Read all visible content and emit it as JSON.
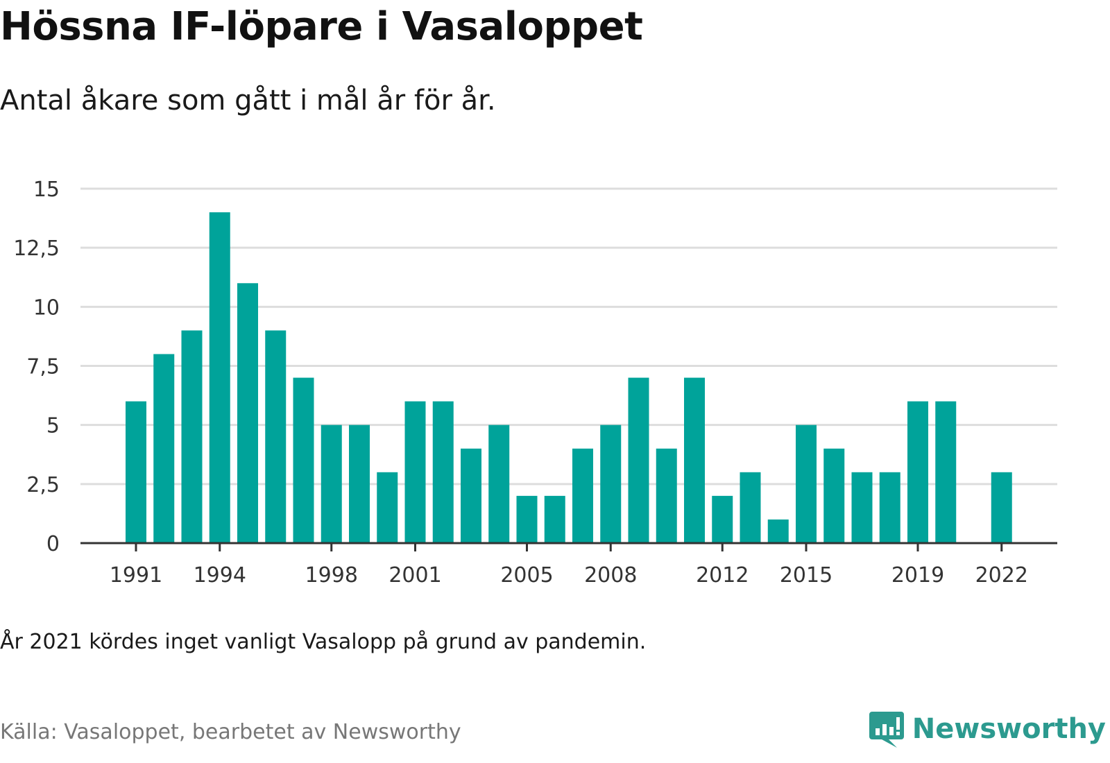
{
  "header": {
    "title": "Hössna IF-löpare i Vasaloppet",
    "subtitle": "Antal åkare som gått i mål år för år."
  },
  "footer": {
    "note": "År 2021 kördes inget vanligt Vasalopp på grund av pandemin.",
    "source": "Källa: Vasaloppet, bearbetet av Newsworthy",
    "brand": "Newsworthy",
    "brand_icon": "newsworthy-logo-icon"
  },
  "colors": {
    "bar": "#00a39a",
    "grid": "#dddddd",
    "axis": "#333333",
    "brand": "#2c9a8f"
  },
  "chart_data": {
    "type": "bar",
    "title": "Hössna IF-löpare i Vasaloppet",
    "subtitle": "Antal åkare som gått i mål år för år.",
    "xlabel": "",
    "ylabel": "",
    "x": [
      1991,
      1992,
      1993,
      1994,
      1995,
      1996,
      1997,
      1998,
      1999,
      2000,
      2001,
      2002,
      2003,
      2004,
      2005,
      2006,
      2007,
      2008,
      2009,
      2010,
      2011,
      2012,
      2013,
      2014,
      2015,
      2016,
      2017,
      2018,
      2019,
      2020,
      2021,
      2022
    ],
    "values": [
      6,
      8,
      9,
      14,
      11,
      9,
      7,
      5,
      5,
      3,
      6,
      6,
      4,
      5,
      2,
      2,
      4,
      5,
      7,
      4,
      7,
      2,
      3,
      1,
      5,
      4,
      3,
      3,
      6,
      6,
      null,
      3
    ],
    "ylim": [
      0,
      15
    ],
    "y_ticks": [
      0,
      2.5,
      5,
      7.5,
      10,
      12.5,
      15
    ],
    "y_tick_labels": [
      "0",
      "2,5",
      "5",
      "7,5",
      "10",
      "12,5",
      "15"
    ],
    "x_tick_labels": [
      "1991",
      "1994",
      "1998",
      "2001",
      "2005",
      "2008",
      "2012",
      "2015",
      "2019",
      "2022"
    ],
    "grid": true,
    "legend": "none"
  }
}
